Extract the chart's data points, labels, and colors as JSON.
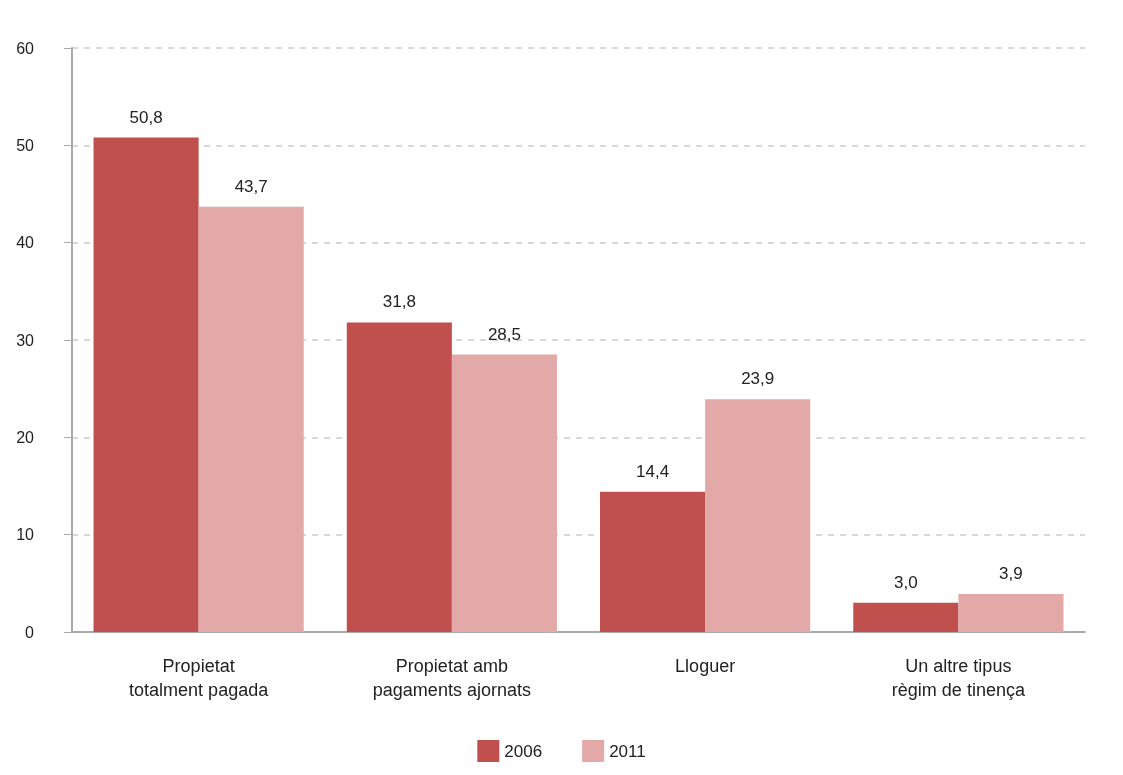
{
  "chart_data": {
    "type": "bar",
    "categories": [
      "Propietat\ntotalment pagada",
      "Propietat amb\npagaments ajornats",
      "Lloguer",
      "Un altre tipus\nrègim de tinença"
    ],
    "series": [
      {
        "name": "2006",
        "color": "#c0504d",
        "values": [
          50.8,
          31.8,
          14.4,
          3.0
        ],
        "value_labels": [
          "50,8",
          "31,8",
          "14,4",
          "3,0"
        ]
      },
      {
        "name": "2011",
        "color": "#e2a9a8",
        "values": [
          43.7,
          28.5,
          23.9,
          3.9
        ],
        "value_labels": [
          "43,7",
          "28,5",
          "23,9",
          "3,9"
        ]
      }
    ],
    "ylim": [
      0,
      60
    ],
    "yticks": [
      0,
      10,
      20,
      30,
      40,
      50,
      60
    ],
    "grid": "y",
    "legend": "bottom"
  }
}
